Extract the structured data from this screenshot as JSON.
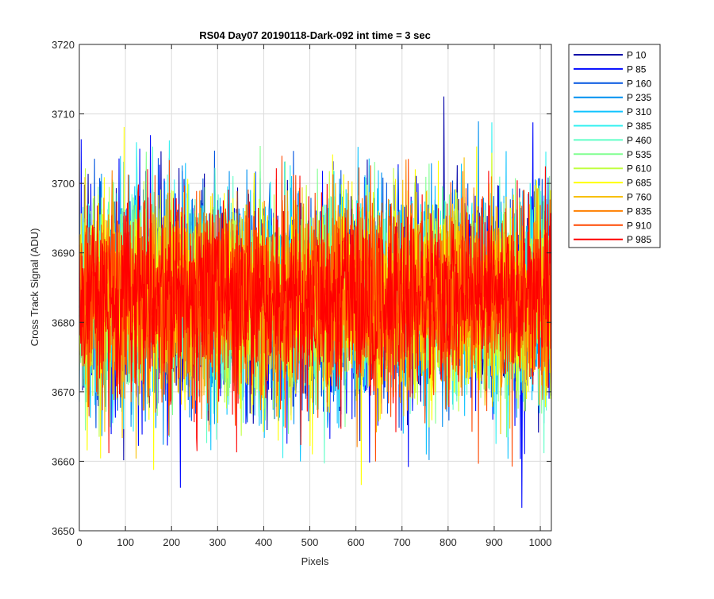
{
  "chart_data": {
    "type": "line",
    "title": "RS04 Day07 20190118-Dark-092 int time = 3 sec",
    "xlabel": "Pixels",
    "ylabel": "Cross Track Signal (ADU)",
    "xlim": [
      0,
      1024
    ],
    "ylim": [
      3650,
      3720
    ],
    "x_ticks": [
      0,
      100,
      200,
      300,
      400,
      500,
      600,
      700,
      800,
      900,
      1000
    ],
    "y_ticks": [
      3650,
      3660,
      3670,
      3680,
      3690,
      3700,
      3710,
      3720
    ],
    "x_tick_labels": [
      "0",
      "100",
      "200",
      "300",
      "400",
      "500",
      "600",
      "700",
      "800",
      "900",
      "1000"
    ],
    "y_tick_labels": [
      "3650",
      "3660",
      "3670",
      "3680",
      "3690",
      "3700",
      "3710",
      "3720"
    ],
    "grid": true,
    "legend_position": "outside-right-top",
    "n_points": 1024,
    "series": [
      {
        "name": "P 10",
        "color": "#0000a8",
        "mean": 3683.5,
        "std": 7.5,
        "seed": 11
      },
      {
        "name": "P 85",
        "color": "#0008ff",
        "mean": 3683.3,
        "std": 7.4,
        "seed": 23
      },
      {
        "name": "P 160",
        "color": "#0054e0",
        "mean": 3683.5,
        "std": 7.3,
        "seed": 37
      },
      {
        "name": "P 235",
        "color": "#0090f0",
        "mean": 3683.4,
        "std": 7.2,
        "seed": 41
      },
      {
        "name": "P 310",
        "color": "#10c4ff",
        "mean": 3683.6,
        "std": 7.1,
        "seed": 53
      },
      {
        "name": "P 385",
        "color": "#30f0f0",
        "mean": 3683.5,
        "std": 7.0,
        "seed": 67
      },
      {
        "name": "P 460",
        "color": "#60ffc8",
        "mean": 3683.4,
        "std": 7.0,
        "seed": 71
      },
      {
        "name": "P 535",
        "color": "#80ff90",
        "mean": 3683.6,
        "std": 7.0,
        "seed": 83
      },
      {
        "name": "P 610",
        "color": "#c0ff40",
        "mean": 3683.5,
        "std": 6.9,
        "seed": 97
      },
      {
        "name": "P 685",
        "color": "#ffff00",
        "mean": 3683.5,
        "std": 6.9,
        "seed": 101
      },
      {
        "name": "P 760",
        "color": "#f8c000",
        "mean": 3683.4,
        "std": 6.9,
        "seed": 113
      },
      {
        "name": "P 835",
        "color": "#ff8000",
        "mean": 3683.5,
        "std": 6.8,
        "seed": 127
      },
      {
        "name": "P 910",
        "color": "#ff4800",
        "mean": 3683.5,
        "std": 6.8,
        "seed": 131
      },
      {
        "name": "P 985",
        "color": "#ff0000",
        "mean": 3683.5,
        "std": 6.8,
        "seed": 149
      }
    ]
  }
}
